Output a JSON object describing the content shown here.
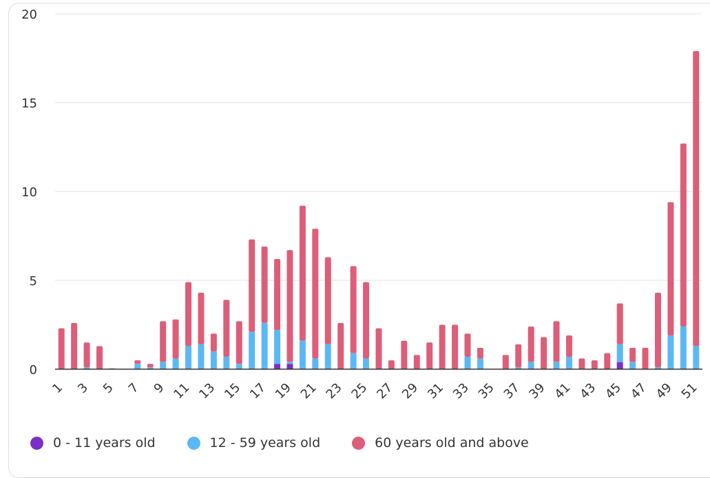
{
  "colors": {
    "series_0_11": "#7b2fc9",
    "series_12_59": "#5cb8f5",
    "series_60_plus": "#dd5e78",
    "grid": "#e6e8eb",
    "axis": "#333333"
  },
  "chart_data": {
    "type": "bar",
    "stacked": true,
    "title": "",
    "xlabel": "",
    "ylabel": "",
    "ylim": [
      0,
      20
    ],
    "yticks": [
      0,
      5,
      10,
      15,
      20
    ],
    "xtick_labels": [
      "1",
      "3",
      "5",
      "7",
      "9",
      "11",
      "13",
      "15",
      "17",
      "19",
      "21",
      "23",
      "25",
      "27",
      "29",
      "31",
      "33",
      "35",
      "37",
      "39",
      "41",
      "43",
      "45",
      "47",
      "49",
      "51"
    ],
    "grid": true,
    "legend_position": "bottom-left",
    "categories": [
      "1",
      "2",
      "3",
      "4",
      "5",
      "6",
      "7",
      "8",
      "9",
      "10",
      "11",
      "12",
      "13",
      "14",
      "15",
      "16",
      "17",
      "18",
      "19",
      "20",
      "21",
      "22",
      "23",
      "24",
      "25",
      "26",
      "27",
      "28",
      "29",
      "30",
      "31",
      "32",
      "33",
      "34",
      "35",
      "36",
      "37",
      "38",
      "39",
      "40",
      "41",
      "42",
      "43",
      "44",
      "45",
      "46",
      "47",
      "48",
      "49",
      "50",
      "51"
    ],
    "series": [
      {
        "name": "0 - 11 years old",
        "values": [
          0,
          0,
          0,
          0,
          0,
          0,
          0,
          0,
          0,
          0,
          0,
          0,
          0,
          0,
          0,
          0,
          0,
          0.3,
          0.3,
          0,
          0,
          0,
          0,
          0,
          0,
          0,
          0,
          0,
          0,
          0,
          0,
          0,
          0,
          0,
          0,
          0,
          0,
          0,
          0,
          0,
          0,
          0,
          0,
          0,
          0.4,
          0,
          0,
          0,
          0,
          0,
          0
        ]
      },
      {
        "name": "12 - 59 years old",
        "values": [
          0,
          0,
          0.1,
          0,
          0.05,
          0,
          0.3,
          0.1,
          0.4,
          0.6,
          1.3,
          1.4,
          1.0,
          0.7,
          0.3,
          2.1,
          2.6,
          1.9,
          0.1,
          1.6,
          0.6,
          1.4,
          0,
          0.9,
          0.6,
          0,
          0,
          0,
          0,
          0,
          0,
          0,
          0.7,
          0.6,
          0,
          0,
          0.1,
          0.4,
          0,
          0.4,
          0.7,
          0,
          0,
          0,
          1.0,
          0.4,
          0,
          0.1,
          1.9,
          2.4,
          1.3
        ]
      },
      {
        "name": "60 years old and above",
        "values": [
          2.3,
          2.6,
          1.4,
          1.3,
          0,
          0,
          0.2,
          0.2,
          2.3,
          2.2,
          3.6,
          2.9,
          1.0,
          3.2,
          2.4,
          5.2,
          4.3,
          4.0,
          6.3,
          7.6,
          7.3,
          4.9,
          2.6,
          4.9,
          4.3,
          2.3,
          0.5,
          1.6,
          0.8,
          1.5,
          2.5,
          2.5,
          1.3,
          0.6,
          0,
          0.8,
          1.3,
          2.0,
          1.8,
          2.3,
          1.2,
          0.6,
          0.5,
          0.9,
          2.3,
          0.8,
          1.2,
          4.2,
          7.5,
          10.3,
          16.6
        ]
      }
    ]
  }
}
